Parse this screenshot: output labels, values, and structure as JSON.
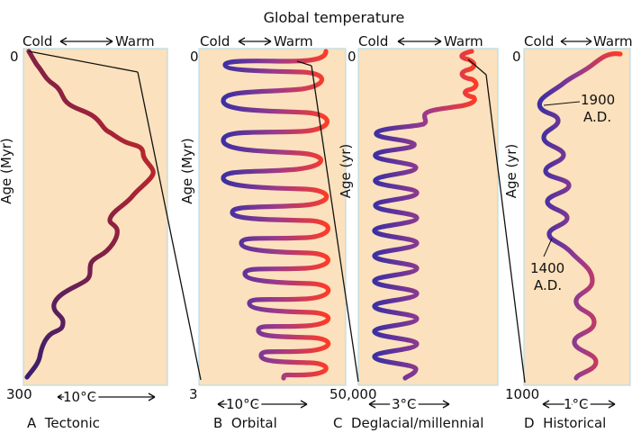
{
  "figure": {
    "title": "Global temperature",
    "colors": {
      "panel_background": "#fbe1bd",
      "panel_edge": "#b9dde6",
      "cold": "#3b2fa4",
      "warm": "#ff3b26",
      "tectonic_cold": "#3a1e70",
      "tectonic_warm": "#d42a22"
    },
    "panels": [
      {
        "id": "A",
        "cold_label": "Cold",
        "warm_label": "Warm",
        "axis_label": "Age (Myr)",
        "top_value": "0",
        "bottom_value": "300",
        "scale_label": "10°C",
        "caption": "A  Tectonic"
      },
      {
        "id": "B",
        "cold_label": "Cold",
        "warm_label": "Warm",
        "axis_label": "Age (Myr)",
        "top_value": "0",
        "bottom_value": "3",
        "scale_label": "10°C",
        "caption": "B  Orbital"
      },
      {
        "id": "C",
        "cold_label": "Cold",
        "warm_label": "Warm",
        "axis_label": "Age (yr)",
        "top_value": "0",
        "bottom_value": "50,000",
        "scale_label": "3°C",
        "caption": "C  Deglacial/millennial"
      },
      {
        "id": "D",
        "cold_label": "Cold",
        "warm_label": "Warm",
        "axis_label": "Age (yr)",
        "top_value": "0",
        "bottom_value": "1000",
        "scale_label": "1°C",
        "caption": "D  Historical",
        "annotations": [
          {
            "line1": "1900",
            "line2": "A.D."
          },
          {
            "line1": "1400",
            "line2": "A.D."
          }
        ]
      }
    ]
  }
}
